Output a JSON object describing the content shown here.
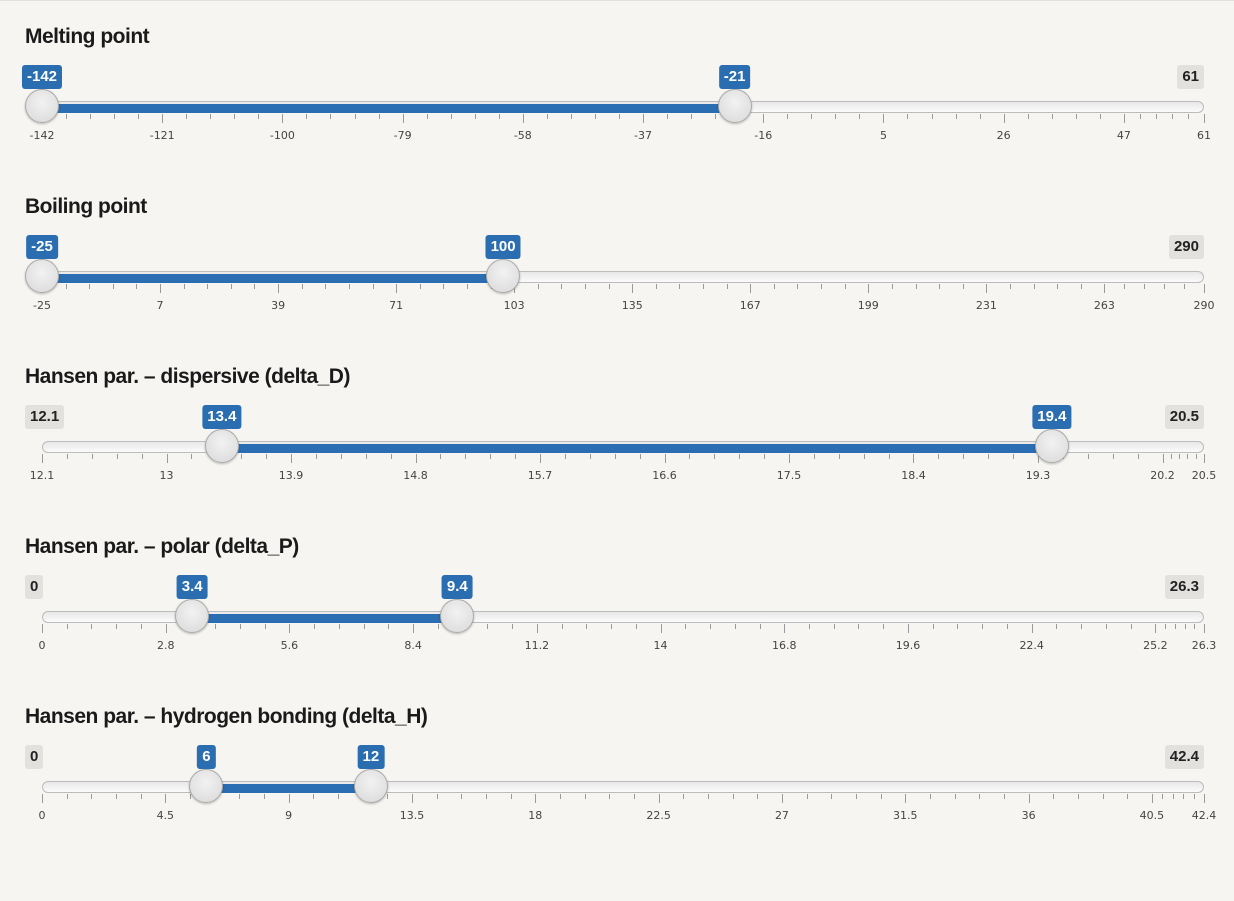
{
  "sliders": [
    {
      "label": "Melting point",
      "min": -142,
      "max": 61,
      "from": -142,
      "to": -21,
      "min_badge": "-142",
      "max_badge": "61",
      "from_badge": "-142",
      "to_badge": "-21",
      "min_badge_style": "blue",
      "hide_min_badge": true,
      "ticks": [
        "-142",
        "-121",
        "-100",
        "-79",
        "-58",
        "-37",
        "-16",
        "5",
        "26",
        "47",
        "61"
      ],
      "tick_values": [
        -142,
        -121,
        -100,
        -79,
        -58,
        -37,
        -16,
        5,
        26,
        47,
        61
      ]
    },
    {
      "label": "Boiling point",
      "min": -25,
      "max": 290,
      "from": -25,
      "to": 100,
      "min_badge": "-25",
      "max_badge": "290",
      "from_badge": "-25",
      "to_badge": "100",
      "hide_min_badge": true,
      "ticks": [
        "-25",
        "7",
        "39",
        "71",
        "103",
        "135",
        "167",
        "199",
        "231",
        "263",
        "290"
      ],
      "tick_values": [
        -25,
        7,
        39,
        71,
        103,
        135,
        167,
        199,
        231,
        263,
        290
      ]
    },
    {
      "label": "Hansen par. – dispersive (delta_D)",
      "min": 12.1,
      "max": 20.5,
      "from": 13.4,
      "to": 19.4,
      "min_badge": "12.1",
      "max_badge": "20.5",
      "from_badge": "13.4",
      "to_badge": "19.4",
      "hide_min_badge": false,
      "ticks": [
        "12.1",
        "13",
        "13.9",
        "14.8",
        "15.7",
        "16.6",
        "17.5",
        "18.4",
        "19.3",
        "20.2",
        "20.5"
      ],
      "tick_values": [
        12.1,
        13,
        13.9,
        14.8,
        15.7,
        16.6,
        17.5,
        18.4,
        19.3,
        20.2,
        20.5
      ]
    },
    {
      "label": "Hansen par. – polar (delta_P)",
      "min": 0,
      "max": 26.3,
      "from": 3.4,
      "to": 9.4,
      "min_badge": "0",
      "max_badge": "26.3",
      "from_badge": "3.4",
      "to_badge": "9.4",
      "hide_min_badge": false,
      "ticks": [
        "0",
        "2.8",
        "5.6",
        "8.4",
        "11.2",
        "14",
        "16.8",
        "19.6",
        "22.4",
        "25.2",
        "26.3"
      ],
      "tick_values": [
        0,
        2.8,
        5.6,
        8.4,
        11.2,
        14,
        16.8,
        19.6,
        22.4,
        25.2,
        26.3
      ]
    },
    {
      "label": "Hansen par. – hydrogen bonding (delta_H)",
      "min": 0,
      "max": 42.4,
      "from": 6,
      "to": 12,
      "min_badge": "0",
      "max_badge": "42.4",
      "from_badge": "6",
      "to_badge": "12",
      "hide_min_badge": false,
      "ticks": [
        "0",
        "4.5",
        "9",
        "13.5",
        "18",
        "22.5",
        "27",
        "31.5",
        "36",
        "40.5",
        "42.4"
      ],
      "tick_values": [
        0,
        4.5,
        9,
        13.5,
        18,
        22.5,
        27,
        31.5,
        36,
        40.5,
        42.4
      ]
    }
  ],
  "colors": {
    "accent": "#2b6db2",
    "badge_grey": "#e3e1dd",
    "background": "#f7f5f1"
  }
}
